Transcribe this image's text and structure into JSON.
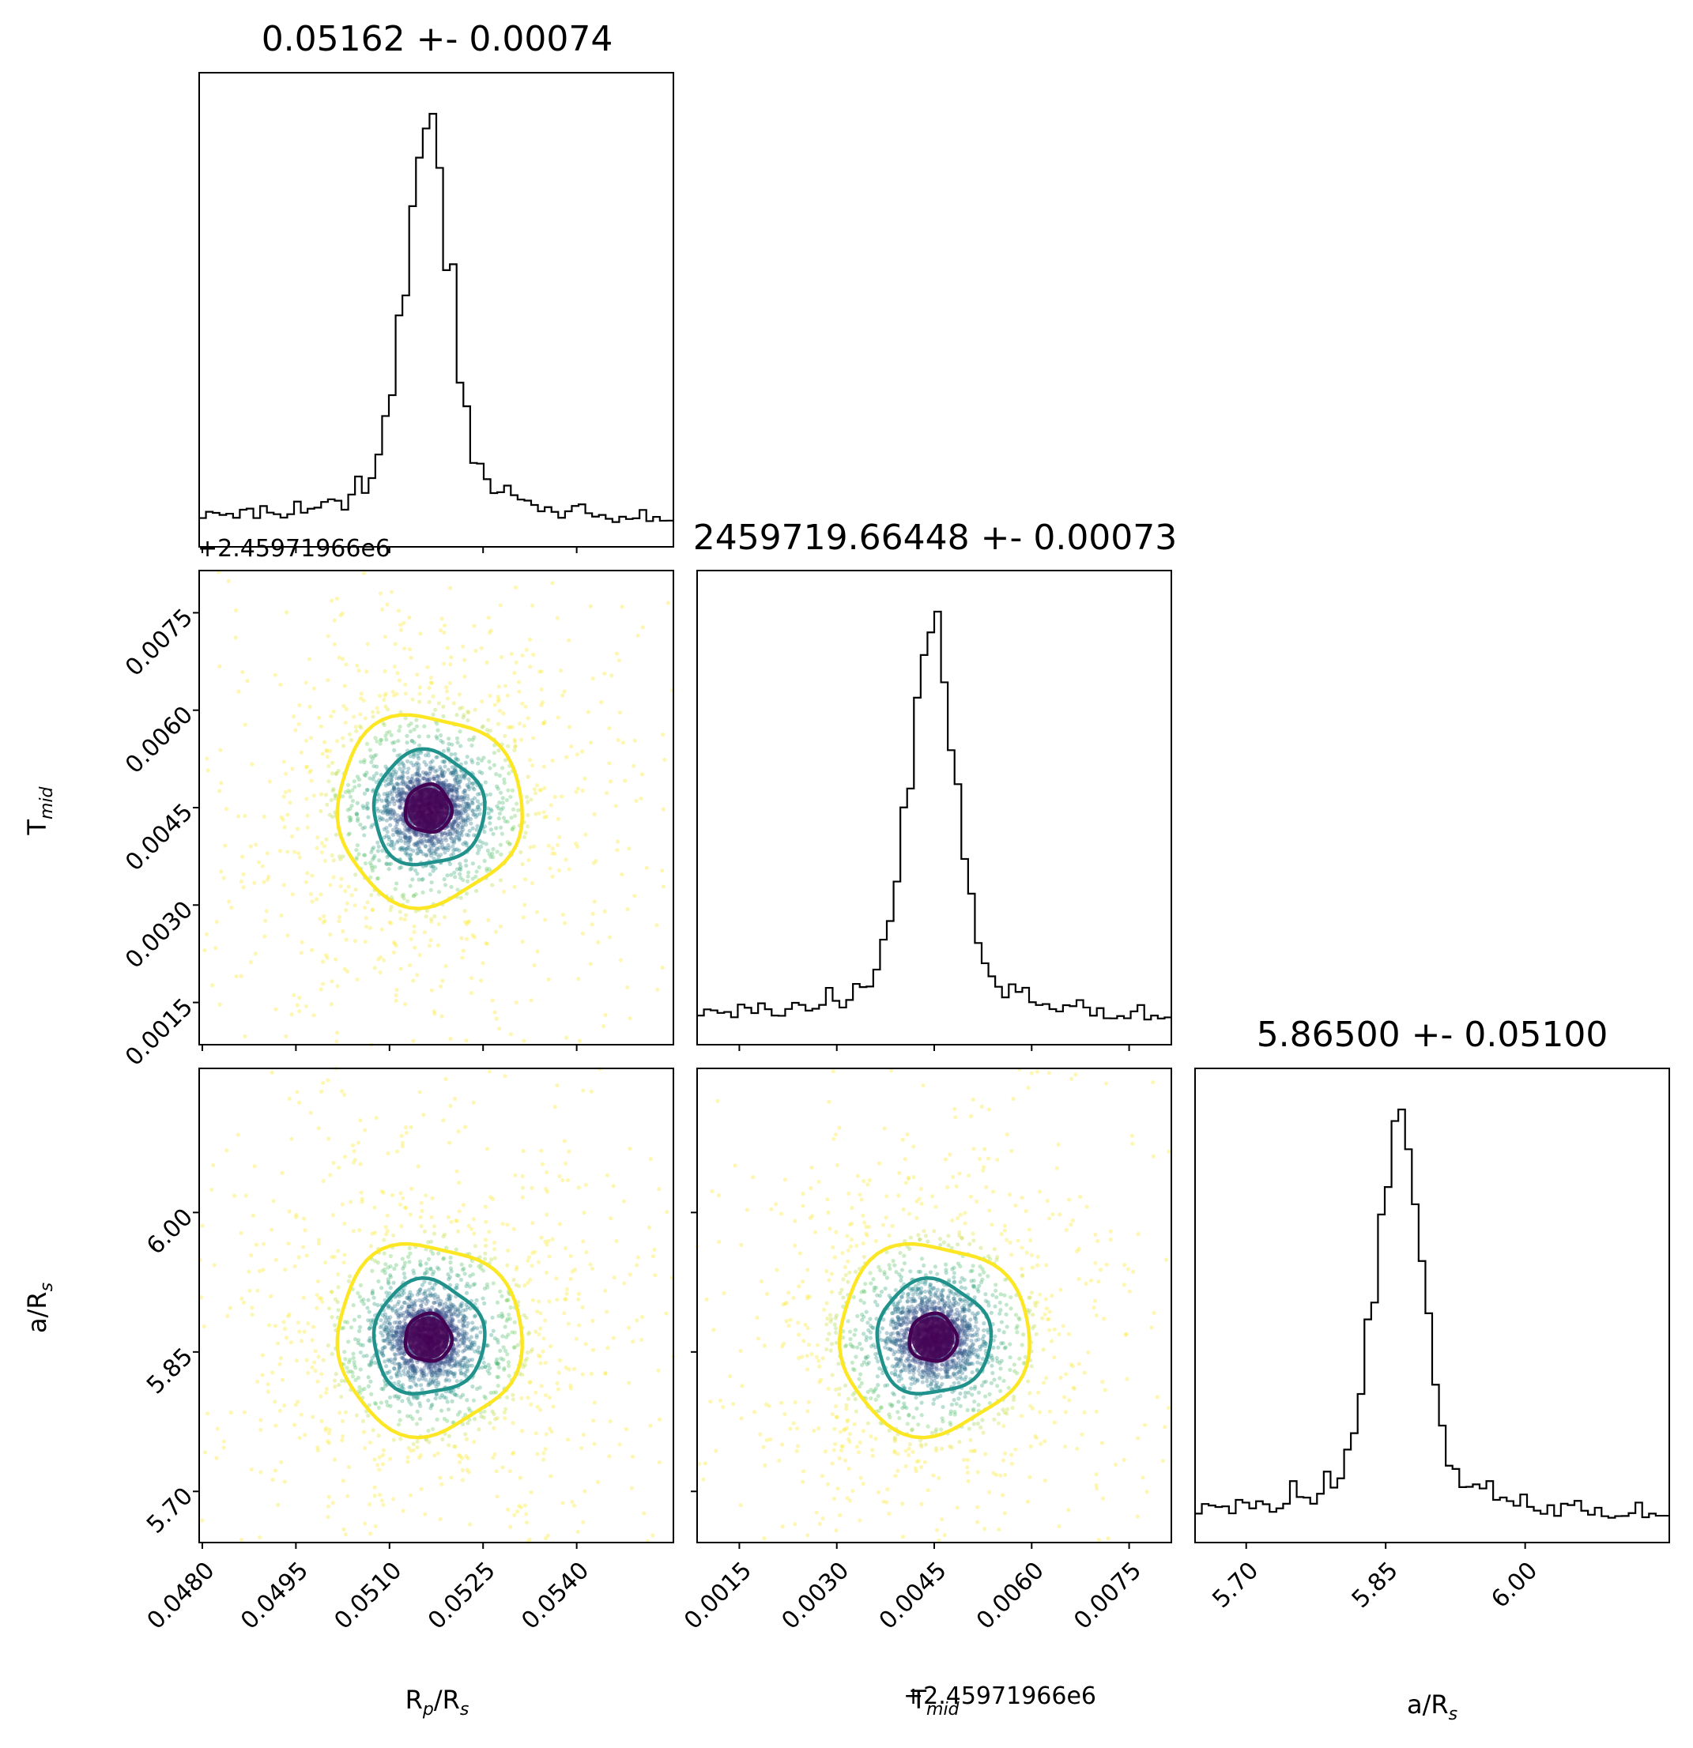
{
  "chart_data": {
    "type": "corner",
    "parameters": [
      {
        "id": "rp",
        "tex": "R",
        "sub": "p",
        "suffix": "/R",
        "suffix_sub": "s",
        "range": [
          0.04795,
          0.05555
        ],
        "ticks": [
          "0.0480",
          "0.0495",
          "0.0510",
          "0.0525",
          "0.0540"
        ],
        "tick_values": [
          0.048,
          0.0495,
          0.051,
          0.0525,
          0.054
        ],
        "median": 0.05162,
        "sigma": 0.00074
      },
      {
        "id": "tmid",
        "tex": "T",
        "sub": "mid",
        "suffix": "",
        "suffix_sub": "",
        "range": [
          0.00085,
          0.00815
        ],
        "ticks": [
          "0.0015",
          "0.0030",
          "0.0045",
          "0.0060",
          "0.0075"
        ],
        "tick_values": [
          0.0015,
          0.003,
          0.0045,
          0.006,
          0.0075
        ],
        "median": 0.00448,
        "sigma": 0.00073,
        "offset": "+2.45971966e6"
      },
      {
        "id": "ars",
        "tex": "a/R",
        "sub": "s",
        "suffix": "",
        "suffix_sub": "",
        "range": [
          5.645,
          6.155
        ],
        "ticks": [
          "5.70",
          "5.85",
          "6.00"
        ],
        "tick_values": [
          5.7,
          5.85,
          6.0
        ],
        "median": 5.865,
        "sigma": 0.051
      }
    ],
    "titles": [
      "0.05162 +- 0.00074",
      "2459719.66448 +- 0.00073",
      "5.86500 +- 0.05100"
    ],
    "axis_labels": {
      "rp": "Rp/Rs",
      "tmid": "Tmid",
      "ars": "a/Rs"
    },
    "offset_text": "+2.45971966e6",
    "histograms": [
      {
        "param": "rp",
        "bins": 70,
        "peak_bin_fraction": [
          0.55,
          1.0
        ]
      },
      {
        "param": "tmid",
        "bins": 70
      },
      {
        "param": "ars",
        "bins": 70
      }
    ],
    "contour_colors": [
      "#440154",
      "#21918c",
      "#fde725"
    ],
    "contour_sigmas": [
      0.5,
      1.2,
      2.0
    ],
    "histogram_color": "#000000",
    "scatter_colormap": "viridis",
    "grid": false,
    "legend": "none"
  }
}
